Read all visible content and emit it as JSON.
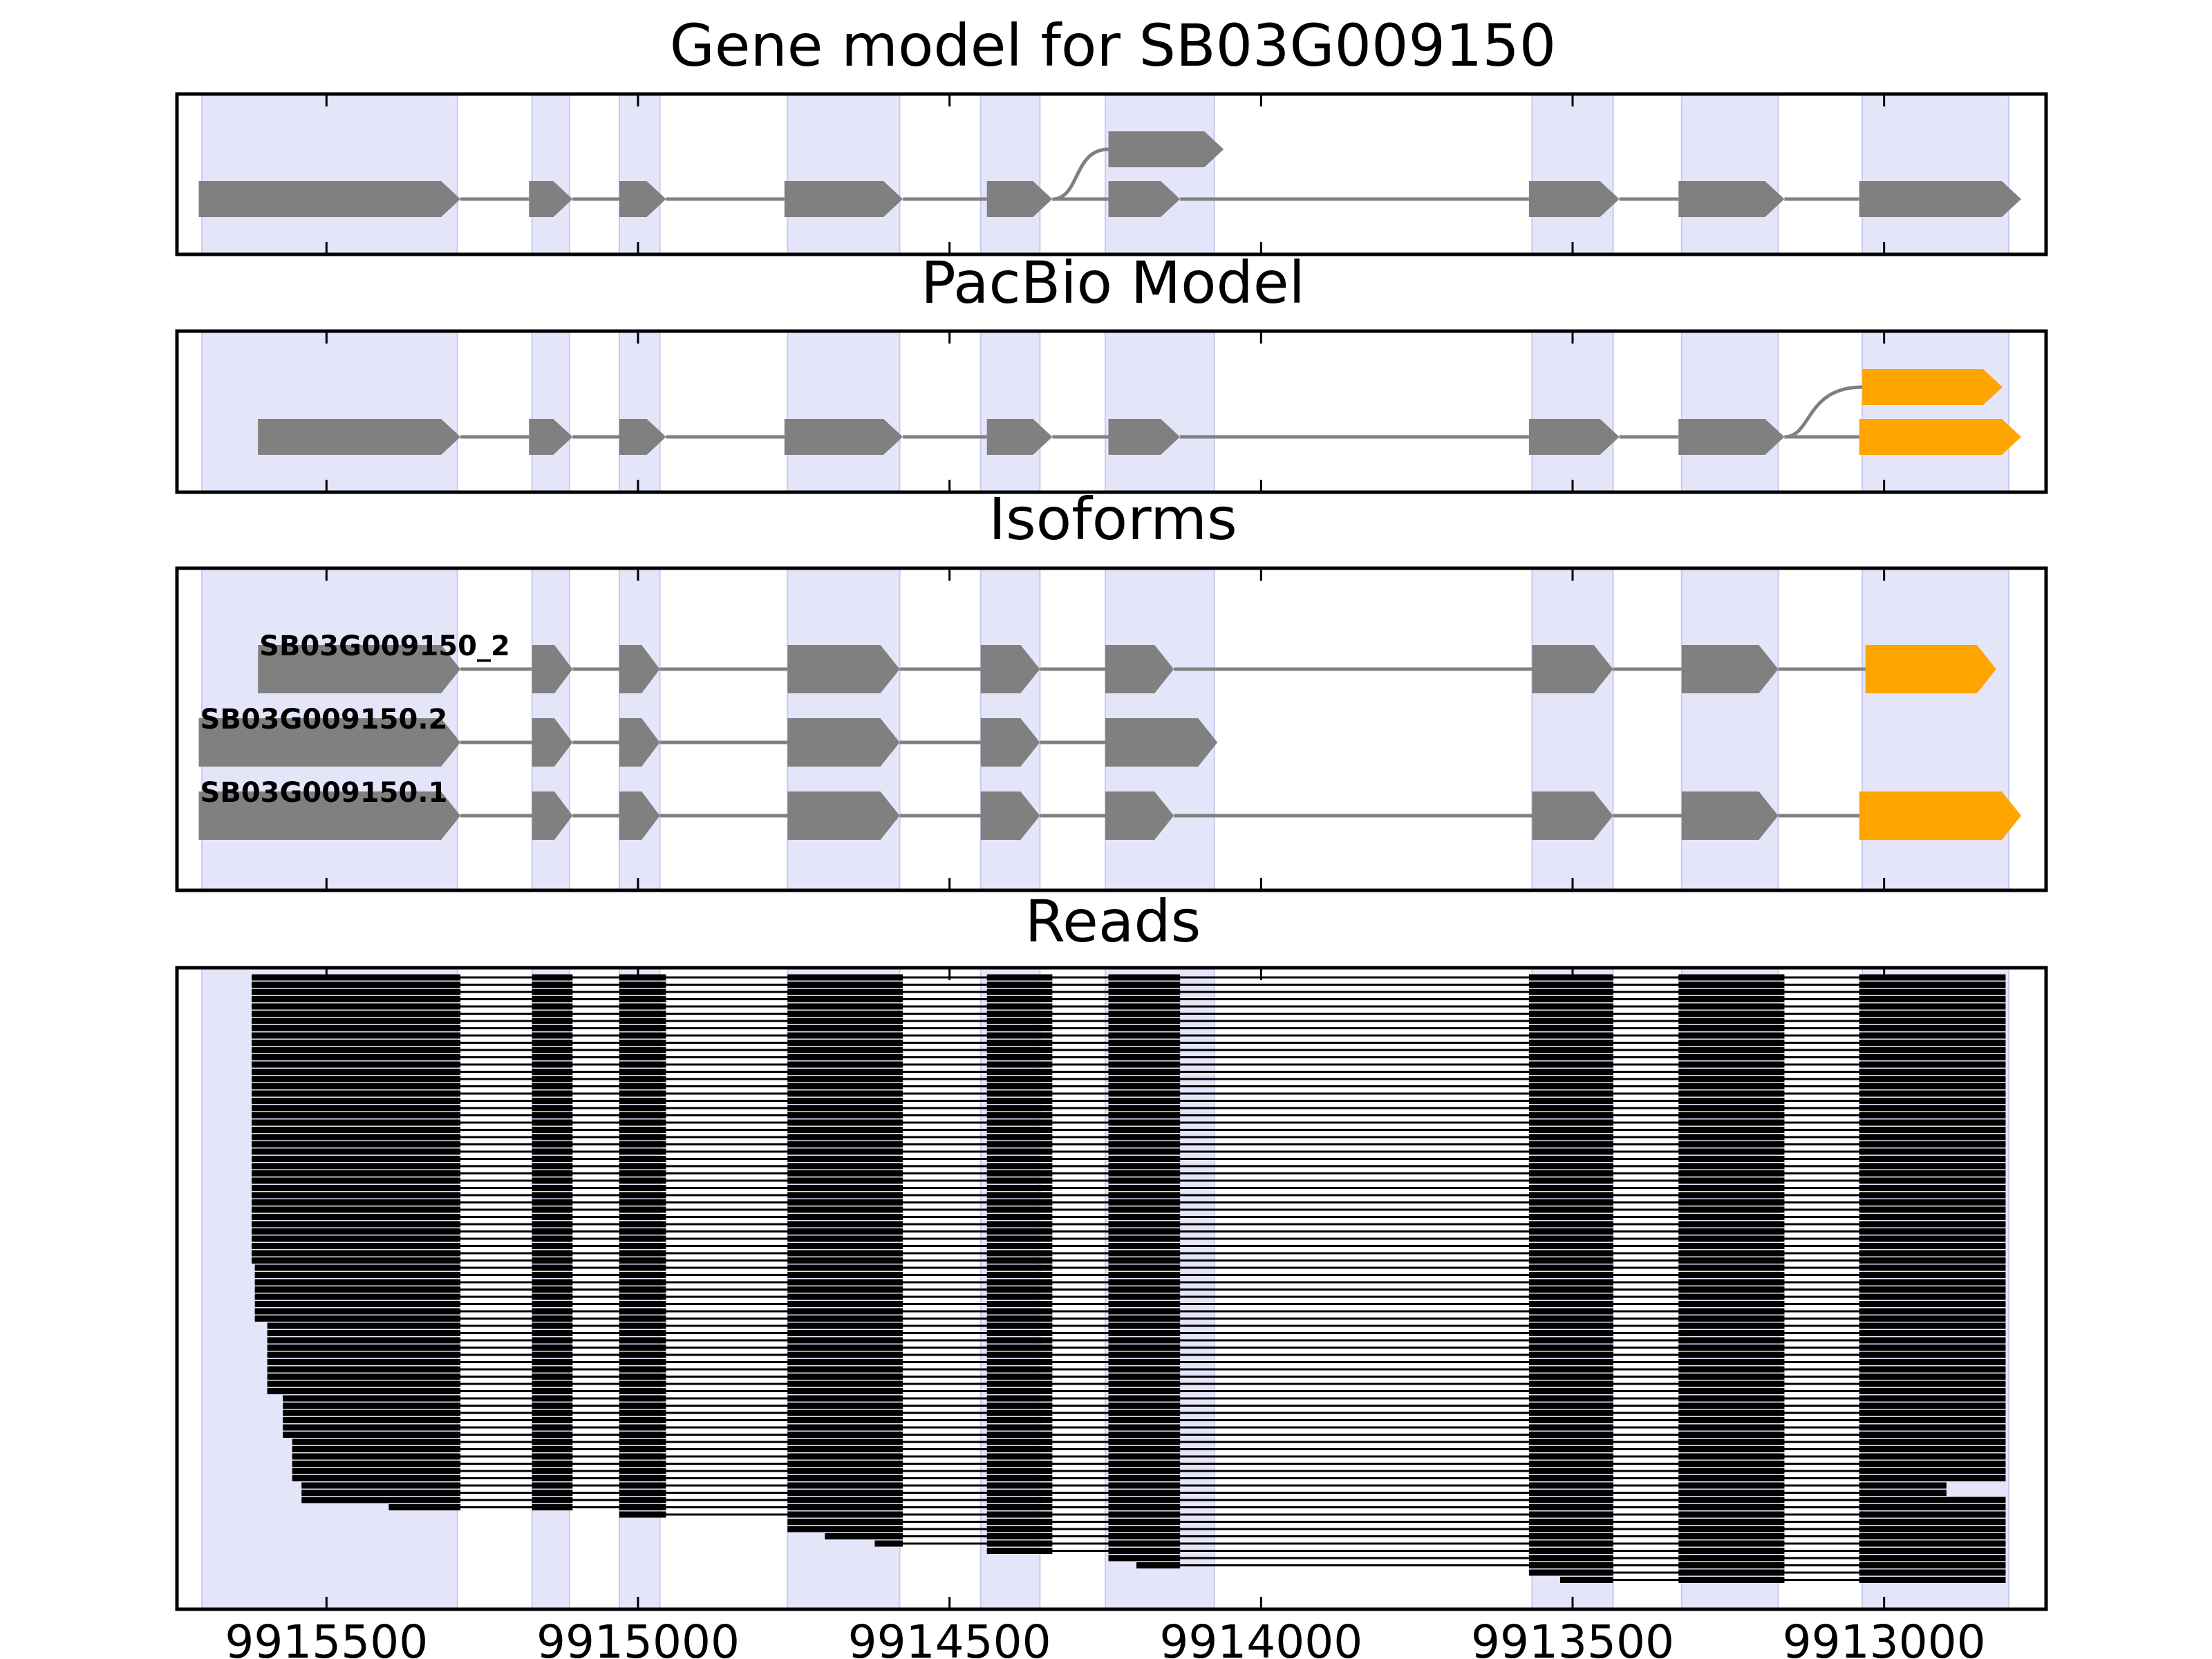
{
  "titles": {
    "gene_model": "Gene model for SB03G009150",
    "pacbio": "PacBio Model",
    "isoforms": "Isoforms",
    "reads": "Reads"
  },
  "axis": {
    "reversed": true,
    "tick_values": [
      9915500,
      9915000,
      9914500,
      9914000,
      9913500,
      9913000
    ],
    "tick_labels": [
      "9915500",
      "9915000",
      "9914500",
      "9914000",
      "9913500",
      "9913000"
    ]
  },
  "colors": {
    "exon": "#808080",
    "alt_exon": "#FFA500",
    "region_shade": "#E5E5FA",
    "read": "#000000"
  },
  "chart_data": {
    "type": "gene-structure",
    "x_range": [
      9915740,
      9912740
    ],
    "highlight_regions": [
      [
        9915700,
        9915290
      ],
      [
        9915170,
        9915110
      ],
      [
        9915030,
        9914965
      ],
      [
        9914760,
        9914580
      ],
      [
        9914450,
        9914355
      ],
      [
        9914250,
        9914075
      ],
      [
        9913565,
        9913435
      ],
      [
        9913325,
        9913170
      ],
      [
        9913035,
        9912800
      ]
    ],
    "gene_model": {
      "transcripts": [
        {
          "row": 0,
          "color": "exon",
          "exons": [
            [
              9915705,
              9915285
            ],
            [
              9915175,
              9915105
            ],
            [
              9915030,
              9914955
            ],
            [
              9914765,
              9914575
            ],
            [
              9914440,
              9914335
            ],
            [
              9914245,
              9914130
            ],
            [
              9913570,
              9913425
            ],
            [
              9913330,
              9913160
            ],
            [
              9913040,
              9912780
            ]
          ]
        },
        {
          "row": 1,
          "color": "exon",
          "branch_from_row": 0,
          "branch_from_x": 9914335,
          "exons": [
            [
              9914245,
              9914060
            ]
          ]
        }
      ]
    },
    "pacbio_model": {
      "transcripts": [
        {
          "row": 0,
          "color": "exon",
          "exons": [
            [
              9915610,
              9915285
            ],
            [
              9915175,
              9915105
            ],
            [
              9915030,
              9914955
            ],
            [
              9914765,
              9914575
            ],
            [
              9914440,
              9914335
            ],
            [
              9914245,
              9914130
            ],
            [
              9913570,
              9913425
            ],
            [
              9913330,
              9913160
            ]
          ],
          "extra_exons": [
            {
              "exon": [
                9913040,
                9912780
              ],
              "color": "alt_exon"
            }
          ]
        },
        {
          "row": 1,
          "color": "alt_exon",
          "branch_from_row": 0,
          "branch_from_x": 9913160,
          "exons": [
            [
              9913035,
              9912810
            ]
          ]
        }
      ]
    },
    "isoforms": [
      {
        "name": "SB03G009150_2",
        "exons": [
          [
            9915610,
            9915285
          ],
          [
            9915170,
            9915105
          ],
          [
            9915030,
            9914965
          ],
          [
            9914760,
            9914580
          ],
          [
            9914450,
            9914355
          ],
          [
            9914250,
            9914140
          ],
          [
            9913565,
            9913435
          ],
          [
            9913325,
            9913170
          ],
          [
            9913030,
            9912820
          ]
        ],
        "alt_exon_indices": [
          8
        ]
      },
      {
        "name": "SB03G009150.2",
        "exons": [
          [
            9915705,
            9915285
          ],
          [
            9915170,
            9915105
          ],
          [
            9915030,
            9914965
          ],
          [
            9914760,
            9914580
          ],
          [
            9914450,
            9914355
          ],
          [
            9914250,
            9914070
          ]
        ],
        "alt_exon_indices": []
      },
      {
        "name": "SB03G009150.1",
        "exons": [
          [
            9915705,
            9915285
          ],
          [
            9915170,
            9915105
          ],
          [
            9915030,
            9914965
          ],
          [
            9914760,
            9914580
          ],
          [
            9914450,
            9914355
          ],
          [
            9914250,
            9914140
          ],
          [
            9913565,
            9913435
          ],
          [
            9913325,
            9913170
          ],
          [
            9913040,
            9912780
          ]
        ],
        "alt_exon_indices": [
          8
        ]
      }
    ],
    "reads": {
      "count": 84,
      "exon_blocks": [
        [
          9915620,
          9915285
        ],
        [
          9915170,
          9915105
        ],
        [
          9915030,
          9914955
        ],
        [
          9914760,
          9914575
        ],
        [
          9914440,
          9914335
        ],
        [
          9914245,
          9914130
        ],
        [
          9913570,
          9913435
        ],
        [
          9913330,
          9913160
        ],
        [
          9913040,
          9912805
        ]
      ],
      "start_profile": [
        [
          0,
          9915620
        ],
        [
          40,
          9915615
        ],
        [
          48,
          9915595
        ],
        [
          58,
          9915570
        ],
        [
          64,
          9915555
        ],
        [
          70,
          9915540
        ],
        [
          73,
          9915400
        ],
        [
          74,
          9915350
        ]
      ],
      "end_profile": [
        [
          0,
          9912805
        ],
        [
          18,
          9912780
        ],
        [
          20,
          9912805
        ],
        [
          40,
          9912795
        ],
        [
          46,
          9912780
        ],
        [
          48,
          9912805
        ],
        [
          68,
          9912780
        ],
        [
          70,
          9912900
        ],
        [
          72,
          9912805
        ],
        [
          74,
          9912780
        ],
        [
          76,
          9912805
        ]
      ],
      "truncated": [
        {
          "from_row": 74,
          "start": 9915030
        },
        {
          "from_row": 75,
          "start": 9914760
        },
        {
          "from_row": 77,
          "start": 9914700
        },
        {
          "from_row": 78,
          "start": 9914620
        },
        {
          "from_row": 79,
          "start": 9914440
        },
        {
          "from_row": 80,
          "start": 9914245
        },
        {
          "from_row": 81,
          "start": 9914200
        },
        {
          "from_row": 82,
          "start": 9913570
        },
        {
          "from_row": 83,
          "start": 9913520
        }
      ]
    }
  }
}
